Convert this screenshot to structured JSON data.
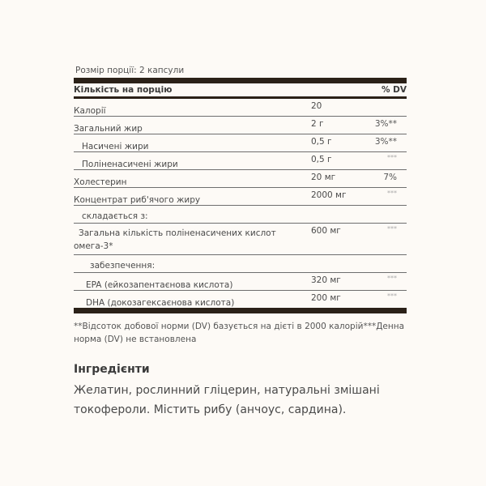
{
  "serving_size": "Розмір порції: 2 капсули",
  "header": {
    "amount": "Кількість на порцію",
    "dv": "% DV"
  },
  "rows": [
    {
      "label": "Калорії",
      "value": "20",
      "dv": ""
    },
    {
      "label": "Загальний жир",
      "value": "2 г",
      "dv": "3%**"
    },
    {
      "label": "Насичені жири",
      "value": "0,5 г",
      "dv": "3%**"
    },
    {
      "label": "Поліненасичені жири",
      "value": "0,5 г",
      "dv": "***"
    },
    {
      "label": "Холестерин",
      "value": "20 мг",
      "dv": "7%"
    },
    {
      "label": "Концентрат риб'ячого жиру",
      "value": "2000 мг",
      "dv": "***"
    },
    {
      "label": "складається з:",
      "value": "",
      "dv": ""
    },
    {
      "label": "Загальна кількість поліненасичених кислот омега-3*",
      "value": "600 мг",
      "dv": "***"
    },
    {
      "label": "забезпечення:",
      "value": "",
      "dv": ""
    },
    {
      "label": "EPA (ейкозапентаєнова кислота)",
      "value": "320 мг",
      "dv": "***"
    },
    {
      "label": "DHA (докозагексаєнова кислота)",
      "value": "200 мг",
      "dv": "***"
    }
  ],
  "footnote": "**Відсоток добової норми (DV) базується на дієті в 2000 калорій***Денна норма (DV) не встановлена",
  "ingredients": {
    "title": "Інгредієнти",
    "text": "Желатин, рослинний гліцерин, натуральні змішані токофероли. Містить рибу (анчоус, сардина)."
  }
}
